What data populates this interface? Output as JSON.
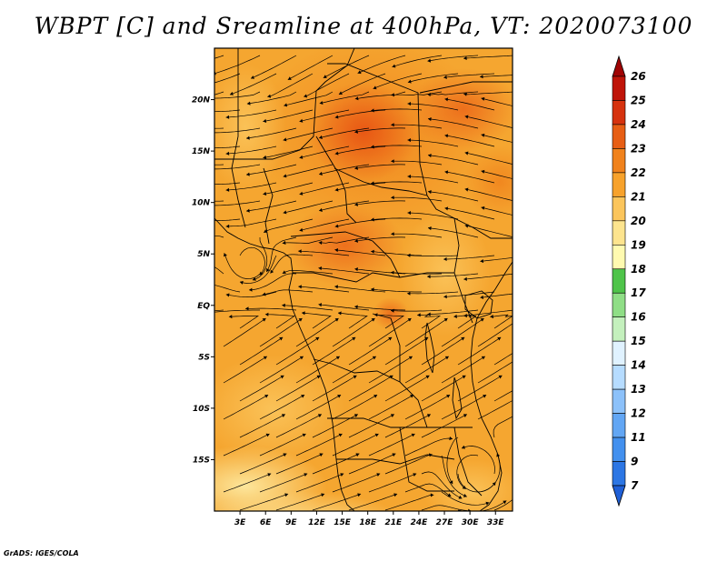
{
  "title": "WBPT [C] and Sreamline at 400hPa, VT: 2020073100",
  "credit": "GrADS: IGES/COLA",
  "map": {
    "variable": "WBPT [C]",
    "level": "400hPa",
    "valid_time": "2020073100",
    "lon_range": [
      0,
      35
    ],
    "lat_range": [
      -20,
      25
    ],
    "x_ticks": [
      "3E",
      "6E",
      "9E",
      "12E",
      "15E",
      "18E",
      "21E",
      "24E",
      "27E",
      "30E",
      "33E"
    ],
    "x_tick_values": [
      3,
      6,
      9,
      12,
      15,
      18,
      21,
      24,
      27,
      30,
      33
    ],
    "y_ticks": [
      "20N",
      "15N",
      "10N",
      "5N",
      "EQ",
      "5S",
      "10S",
      "15S"
    ],
    "y_tick_values": [
      20,
      15,
      10,
      5,
      0,
      -5,
      -10,
      -15
    ]
  },
  "colorbar": {
    "labels": [
      "7",
      "9",
      "11",
      "12",
      "13",
      "14",
      "15",
      "16",
      "17",
      "18",
      "19",
      "20",
      "21",
      "22",
      "23",
      "24",
      "25",
      "26"
    ],
    "colors": [
      "#1f5fd6",
      "#2c76e4",
      "#4390ee",
      "#62a6f4",
      "#8cc1fa",
      "#b6dcff",
      "#e0f2ff",
      "#c4f0bd",
      "#8fde86",
      "#4fc44a",
      "#fffab0",
      "#fde48e",
      "#fbc55c",
      "#f7a22c",
      "#f0821c",
      "#e75e14",
      "#d6320e",
      "#bf1408",
      "#a00404"
    ]
  }
}
